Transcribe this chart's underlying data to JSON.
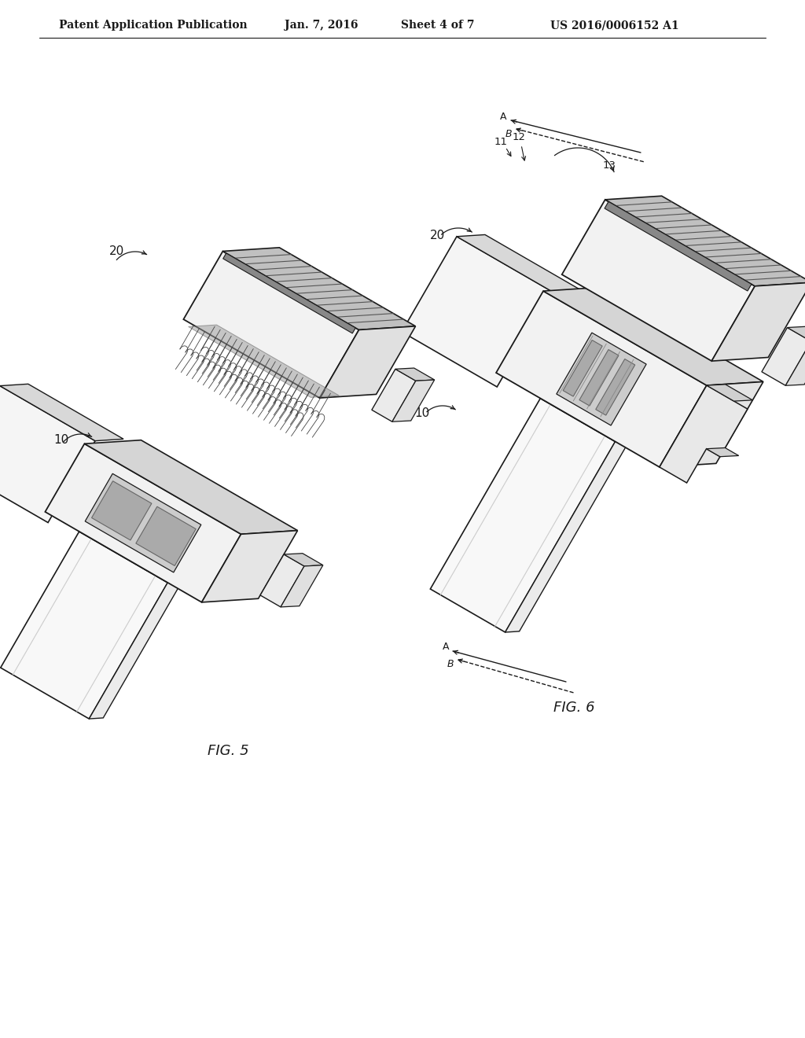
{
  "bg": "#ffffff",
  "lc": "#1a1a1a",
  "header": "Patent Application Publication",
  "date": "Jan. 7, 2016",
  "sheet": "Sheet 4 of 7",
  "patent": "US 2016/0006152 A1",
  "fig5": "FIG. 5",
  "fig6": "FIG. 6"
}
